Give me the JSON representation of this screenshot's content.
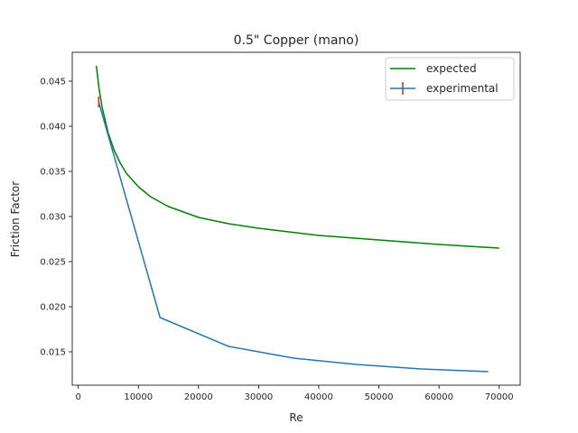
{
  "chart_data": {
    "type": "line",
    "title": "0.5\" Copper (mano)",
    "xlabel": "Re",
    "ylabel": "Friction Factor",
    "xlim": [
      -1000,
      73500
    ],
    "ylim": [
      0.0113,
      0.0482
    ],
    "xticks": [
      0,
      10000,
      20000,
      30000,
      40000,
      50000,
      60000,
      70000
    ],
    "yticks": [
      0.015,
      0.02,
      0.025,
      0.03,
      0.035,
      0.04,
      0.045
    ],
    "grid": false,
    "legend_position": "top-right",
    "series": [
      {
        "name": "expected",
        "color": "#008000",
        "x": [
          3000,
          3500,
          4000,
          5000,
          6000,
          7000,
          8000,
          10000,
          12000,
          15000,
          20000,
          25000,
          30000,
          35000,
          40000,
          50000,
          60000,
          70000
        ],
        "y": [
          0.0467,
          0.044,
          0.042,
          0.0392,
          0.0373,
          0.0359,
          0.0348,
          0.0333,
          0.0322,
          0.0311,
          0.0299,
          0.0292,
          0.0287,
          0.0283,
          0.0279,
          0.0274,
          0.0269,
          0.0265
        ]
      },
      {
        "name": "experimental",
        "color": "#1f77b4",
        "errorbar_color": "#d62728",
        "x": [
          3400,
          13600,
          25000,
          35800,
          46200,
          57000,
          68200
        ],
        "y": [
          0.0427,
          0.0188,
          0.0156,
          0.0143,
          0.0136,
          0.0131,
          0.0128
        ],
        "yerr": [
          0.0006,
          0,
          0,
          0,
          0,
          0,
          0
        ]
      }
    ]
  }
}
